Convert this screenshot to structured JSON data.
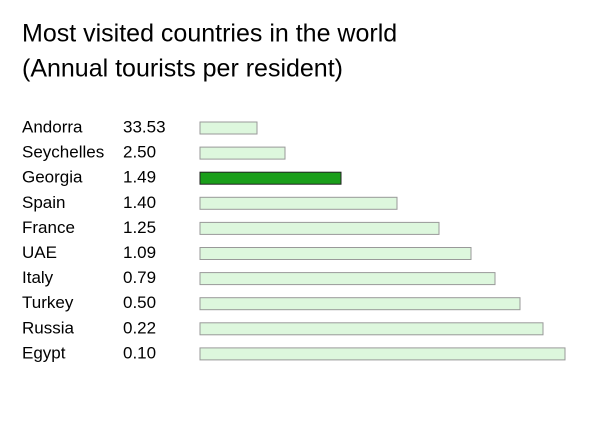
{
  "chart_data": {
    "type": "bar",
    "title": "Most visited countries in the world",
    "subtitle": "(Annual tourists per resident)",
    "categories": [
      "Andorra",
      "Seychelles",
      "Georgia",
      "Spain",
      "France",
      "UAE",
      "Italy",
      "Turkey",
      "Russia",
      "Egypt"
    ],
    "values": [
      33.53,
      2.5,
      1.49,
      1.4,
      1.25,
      1.09,
      0.79,
      0.5,
      0.22,
      0.1
    ],
    "value_labels": [
      "33.53",
      "2.50",
      "1.49",
      "1.40",
      "1.25",
      "1.09",
      "0.79",
      "0.50",
      "0.22",
      "0.10"
    ],
    "colors": [
      "#ddf7dd",
      "#ddf7dd",
      "#1a9e1a",
      "#ddf7dd",
      "#ddf7dd",
      "#ddf7dd",
      "#ddf7dd",
      "#ddf7dd",
      "#ddf7dd",
      "#ddf7dd"
    ]
  }
}
